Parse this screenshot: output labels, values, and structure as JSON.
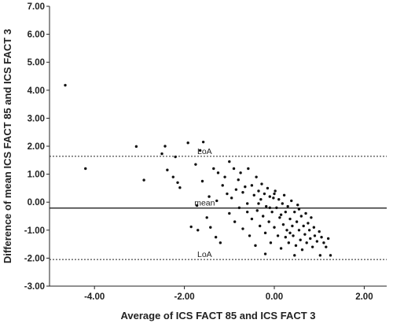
{
  "chart_data": {
    "type": "scatter",
    "title": "",
    "xlabel": "Average of ICS FACT 85 and ICS FACT 3",
    "ylabel": "Difference of mean ICS FACT 85 and ICS FACT 3",
    "xlim": [
      -5.0,
      2.5
    ],
    "ylim": [
      -3.0,
      7.0
    ],
    "x_ticks": [
      -4.0,
      -2.0,
      0.0,
      2.0
    ],
    "x_tick_labels": [
      "-4.00",
      "-2.00",
      "0.00",
      "2.00"
    ],
    "y_ticks": [
      -3,
      -2,
      -1,
      0,
      1,
      2,
      3,
      4,
      5,
      6,
      7
    ],
    "y_tick_labels": [
      "-3.00",
      "-2.00",
      "-1.00",
      "0.00",
      "1.00",
      "2.00",
      "3.00",
      "4.00",
      "5.00",
      "6.00",
      "7.00"
    ],
    "grid": false,
    "lines": [
      {
        "kind": "mean",
        "y": -0.21,
        "style": "solid",
        "label": "mean"
      },
      {
        "kind": "upper_loa",
        "y": 1.64,
        "style": "dashed",
        "label": "LoA"
      },
      {
        "kind": "lower_loa",
        "y": -2.05,
        "style": "dashed",
        "label": "LoA"
      }
    ],
    "points": [
      [
        -4.65,
        4.18
      ],
      [
        -4.2,
        1.2
      ],
      [
        -3.07,
        1.99
      ],
      [
        -2.9,
        0.79
      ],
      [
        -2.5,
        1.73
      ],
      [
        -2.43,
        2.0
      ],
      [
        -2.38,
        1.15
      ],
      [
        -2.25,
        0.9
      ],
      [
        -2.2,
        1.62
      ],
      [
        -2.15,
        0.7
      ],
      [
        -2.1,
        0.52
      ],
      [
        -1.92,
        2.12
      ],
      [
        -1.85,
        -0.88
      ],
      [
        -1.75,
        1.35
      ],
      [
        -1.72,
        -0.12
      ],
      [
        -1.7,
        -1.0
      ],
      [
        -1.65,
        1.85
      ],
      [
        -1.6,
        0.75
      ],
      [
        -1.58,
        2.15
      ],
      [
        -1.5,
        -0.55
      ],
      [
        -1.45,
        0.2
      ],
      [
        -1.42,
        -0.9
      ],
      [
        -1.35,
        1.2
      ],
      [
        -1.3,
        -1.25
      ],
      [
        -1.28,
        0.05
      ],
      [
        -1.25,
        1.05
      ],
      [
        -1.2,
        -1.45
      ],
      [
        -1.15,
        0.6
      ],
      [
        -1.1,
        0.9
      ],
      [
        -1.05,
        0.3
      ],
      [
        -1.0,
        1.45
      ],
      [
        -1.0,
        -0.4
      ],
      [
        -0.95,
        0.15
      ],
      [
        -0.9,
        1.2
      ],
      [
        -0.88,
        -0.7
      ],
      [
        -0.85,
        0.45
      ],
      [
        -0.8,
        0.8
      ],
      [
        -0.78,
        -0.2
      ],
      [
        -0.75,
        1.05
      ],
      [
        -0.7,
        0.35
      ],
      [
        -0.7,
        -0.95
      ],
      [
        -0.65,
        0.55
      ],
      [
        -0.6,
        -0.05
      ],
      [
        -0.58,
        1.2
      ],
      [
        -0.55,
        -1.2
      ],
      [
        -0.5,
        0.6
      ],
      [
        -0.5,
        -0.6
      ],
      [
        -0.45,
        0.25
      ],
      [
        -0.42,
        -1.55
      ],
      [
        -0.4,
        0.9
      ],
      [
        -0.38,
        -0.3
      ],
      [
        -0.35,
        0.4
      ],
      [
        -0.32,
        -0.85
      ],
      [
        -0.3,
        0.1
      ],
      [
        -0.28,
        0.65
      ],
      [
        -0.25,
        -0.5
      ],
      [
        -0.22,
        0.3
      ],
      [
        -0.2,
        -1.1
      ],
      [
        -0.18,
        -0.15
      ],
      [
        -0.15,
        0.5
      ],
      [
        -0.12,
        -0.7
      ],
      [
        -0.1,
        0.2
      ],
      [
        -0.08,
        -1.45
      ],
      [
        -0.05,
        -0.35
      ],
      [
        -0.02,
        0.15
      ],
      [
        0.0,
        -0.9
      ],
      [
        0.02,
        0.4
      ],
      [
        0.05,
        -0.2
      ],
      [
        0.08,
        -1.2
      ],
      [
        0.1,
        0.1
      ],
      [
        0.12,
        -0.55
      ],
      [
        0.15,
        -1.65
      ],
      [
        0.18,
        -0.05
      ],
      [
        0.2,
        -0.8
      ],
      [
        0.22,
        0.25
      ],
      [
        0.25,
        -0.35
      ],
      [
        0.28,
        -1.0
      ],
      [
        0.3,
        -0.15
      ],
      [
        0.32,
        -1.45
      ],
      [
        0.35,
        -0.6
      ],
      [
        0.38,
        0.05
      ],
      [
        0.4,
        -0.85
      ],
      [
        0.42,
        -1.2
      ],
      [
        0.45,
        -0.35
      ],
      [
        0.48,
        -1.55
      ],
      [
        0.5,
        -0.7
      ],
      [
        0.52,
        -0.1
      ],
      [
        0.55,
        -1.0
      ],
      [
        0.58,
        -1.35
      ],
      [
        0.6,
        -0.5
      ],
      [
        0.62,
        -1.7
      ],
      [
        0.65,
        -0.85
      ],
      [
        0.68,
        -1.15
      ],
      [
        0.7,
        -0.4
      ],
      [
        0.72,
        -1.45
      ],
      [
        0.75,
        -0.75
      ],
      [
        0.78,
        -1.0
      ],
      [
        0.8,
        -1.3
      ],
      [
        0.82,
        -0.55
      ],
      [
        0.85,
        -1.6
      ],
      [
        0.88,
        -0.9
      ],
      [
        0.9,
        -1.2
      ],
      [
        0.95,
        -1.4
      ],
      [
        1.0,
        -1.05
      ],
      [
        1.02,
        -1.9
      ],
      [
        1.05,
        -1.25
      ],
      [
        1.1,
        -1.45
      ],
      [
        1.15,
        -1.6
      ],
      [
        1.2,
        -1.3
      ],
      [
        1.25,
        -1.9
      ],
      [
        -0.1,
        -0.2
      ],
      [
        0.0,
        0.3
      ],
      [
        0.15,
        -0.45
      ],
      [
        0.25,
        -1.25
      ],
      [
        -0.35,
        -0.05
      ],
      [
        0.55,
        -0.25
      ],
      [
        -0.6,
        -0.35
      ],
      [
        0.45,
        -1.9
      ],
      [
        -0.2,
        -1.85
      ],
      [
        0.35,
        -1.1
      ]
    ]
  }
}
